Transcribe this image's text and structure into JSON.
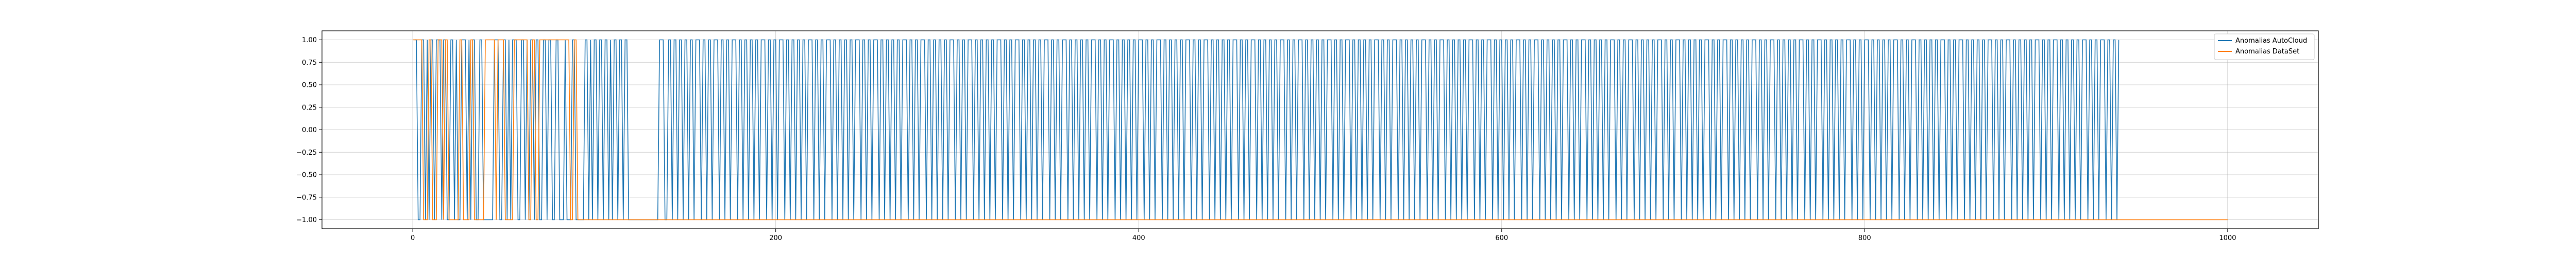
{
  "chart_data": {
    "type": "line",
    "title": "",
    "xlabel": "",
    "ylabel": "",
    "xlim": [
      -50,
      1050
    ],
    "ylim": [
      -1.1,
      1.1
    ],
    "grid": true,
    "legend_position": "top-right",
    "x_ticks": [
      0,
      200,
      400,
      600,
      800,
      1000
    ],
    "x_tick_labels": [
      "0",
      "200",
      "400",
      "600",
      "800",
      "1000"
    ],
    "y_ticks": [
      1.0,
      0.75,
      0.5,
      0.25,
      0.0,
      -0.25,
      -0.5,
      -0.75,
      -1.0
    ],
    "y_tick_labels": [
      "1.00",
      "0.75",
      "0.50",
      "0.25",
      "0.00",
      "−0.25",
      "−0.50",
      "−0.75",
      "−1.00"
    ],
    "series": [
      {
        "name": "Anomalias AutoCloud",
        "color": "#1f77b4",
        "x_range": [
          1,
          940
        ],
        "values_on_value": 1,
        "values_off_value": -1,
        "one_runs": [
          [
            1,
            2
          ],
          [
            5,
            6
          ],
          [
            8,
            8
          ],
          [
            10,
            11
          ],
          [
            13,
            15
          ],
          [
            17,
            18
          ],
          [
            21,
            22
          ],
          [
            24,
            24
          ],
          [
            27,
            29
          ],
          [
            31,
            31
          ],
          [
            33,
            34
          ],
          [
            37,
            38
          ],
          [
            45,
            47
          ],
          [
            50,
            51
          ],
          [
            53,
            53
          ],
          [
            55,
            57
          ],
          [
            60,
            61
          ],
          [
            63,
            63
          ],
          [
            65,
            66
          ],
          [
            68,
            69
          ],
          [
            72,
            73
          ],
          [
            75,
            76
          ],
          [
            79,
            80
          ],
          [
            84,
            84
          ],
          [
            88,
            89
          ],
          [
            95,
            96
          ],
          [
            98,
            98
          ],
          [
            100,
            101
          ],
          [
            103,
            104
          ],
          [
            106,
            107
          ],
          [
            109,
            109
          ],
          [
            111,
            112
          ],
          [
            114,
            115
          ],
          [
            117,
            118
          ],
          [
            136,
            138
          ],
          [
            141,
            142
          ],
          [
            144,
            145
          ],
          [
            147,
            148
          ],
          [
            150,
            151
          ],
          [
            153,
            154
          ],
          [
            156,
            158
          ],
          [
            160,
            161
          ],
          [
            163,
            164
          ],
          [
            166,
            168
          ],
          [
            170,
            171
          ],
          [
            173,
            174
          ],
          [
            176,
            178
          ],
          [
            180,
            181
          ],
          [
            183,
            184
          ],
          [
            186,
            187
          ],
          [
            189,
            190
          ],
          [
            192,
            194
          ],
          [
            196,
            197
          ],
          [
            199,
            200
          ],
          [
            202,
            204
          ],
          [
            206,
            207
          ],
          [
            209,
            210
          ],
          [
            212,
            213
          ],
          [
            215,
            216
          ],
          [
            218,
            220
          ],
          [
            222,
            223
          ],
          [
            225,
            226
          ],
          [
            228,
            230
          ],
          [
            232,
            233
          ],
          [
            235,
            236
          ],
          [
            238,
            239
          ],
          [
            241,
            242
          ],
          [
            244,
            246
          ],
          [
            248,
            249
          ],
          [
            251,
            252
          ],
          [
            254,
            256
          ],
          [
            258,
            259
          ],
          [
            261,
            262
          ],
          [
            264,
            265
          ],
          [
            267,
            268
          ],
          [
            270,
            272
          ],
          [
            274,
            275
          ],
          [
            277,
            278
          ],
          [
            280,
            282
          ],
          [
            284,
            285
          ],
          [
            287,
            288
          ],
          [
            290,
            291
          ],
          [
            293,
            294
          ],
          [
            296,
            298
          ],
          [
            300,
            301
          ],
          [
            303,
            304
          ],
          [
            306,
            308
          ],
          [
            310,
            311
          ],
          [
            313,
            314
          ],
          [
            316,
            317
          ],
          [
            319,
            320
          ],
          [
            322,
            324
          ],
          [
            326,
            327
          ],
          [
            329,
            330
          ],
          [
            332,
            334
          ],
          [
            336,
            337
          ],
          [
            339,
            340
          ],
          [
            342,
            343
          ],
          [
            345,
            346
          ],
          [
            348,
            350
          ],
          [
            352,
            353
          ],
          [
            355,
            356
          ],
          [
            358,
            360
          ],
          [
            362,
            363
          ],
          [
            365,
            366
          ],
          [
            368,
            369
          ],
          [
            371,
            372
          ],
          [
            374,
            376
          ],
          [
            378,
            379
          ],
          [
            381,
            382
          ],
          [
            384,
            386
          ],
          [
            388,
            389
          ],
          [
            391,
            392
          ],
          [
            394,
            395
          ],
          [
            397,
            398
          ],
          [
            400,
            402
          ],
          [
            404,
            405
          ],
          [
            407,
            408
          ],
          [
            410,
            412
          ],
          [
            414,
            415
          ],
          [
            417,
            418
          ],
          [
            420,
            421
          ],
          [
            423,
            424
          ],
          [
            426,
            428
          ],
          [
            430,
            431
          ],
          [
            433,
            434
          ],
          [
            436,
            438
          ],
          [
            440,
            441
          ],
          [
            443,
            444
          ],
          [
            446,
            447
          ],
          [
            449,
            450
          ],
          [
            452,
            454
          ],
          [
            456,
            457
          ],
          [
            459,
            460
          ],
          [
            462,
            464
          ],
          [
            466,
            467
          ],
          [
            469,
            470
          ],
          [
            472,
            473
          ],
          [
            475,
            476
          ],
          [
            478,
            480
          ],
          [
            482,
            483
          ],
          [
            485,
            486
          ],
          [
            488,
            490
          ],
          [
            492,
            493
          ],
          [
            495,
            496
          ],
          [
            498,
            499
          ],
          [
            501,
            502
          ],
          [
            504,
            506
          ],
          [
            508,
            509
          ],
          [
            511,
            512
          ],
          [
            514,
            516
          ],
          [
            518,
            519
          ],
          [
            521,
            522
          ],
          [
            524,
            525
          ],
          [
            527,
            528
          ],
          [
            530,
            532
          ],
          [
            534,
            535
          ],
          [
            537,
            538
          ],
          [
            540,
            542
          ],
          [
            544,
            545
          ],
          [
            547,
            548
          ],
          [
            550,
            551
          ],
          [
            553,
            554
          ],
          [
            556,
            558
          ],
          [
            560,
            561
          ],
          [
            563,
            564
          ],
          [
            566,
            568
          ],
          [
            570,
            571
          ],
          [
            573,
            574
          ],
          [
            576,
            577
          ],
          [
            579,
            580
          ],
          [
            582,
            584
          ],
          [
            586,
            587
          ],
          [
            589,
            590
          ],
          [
            592,
            594
          ],
          [
            596,
            597
          ],
          [
            599,
            600
          ],
          [
            602,
            603
          ],
          [
            605,
            606
          ],
          [
            608,
            610
          ],
          [
            612,
            613
          ],
          [
            615,
            616
          ],
          [
            618,
            620
          ],
          [
            622,
            623
          ],
          [
            625,
            626
          ],
          [
            628,
            629
          ],
          [
            631,
            632
          ],
          [
            634,
            636
          ],
          [
            638,
            639
          ],
          [
            641,
            642
          ],
          [
            644,
            646
          ],
          [
            648,
            649
          ],
          [
            651,
            652
          ],
          [
            654,
            655
          ],
          [
            657,
            658
          ],
          [
            660,
            662
          ],
          [
            664,
            665
          ],
          [
            667,
            668
          ],
          [
            670,
            672
          ],
          [
            674,
            675
          ],
          [
            677,
            678
          ],
          [
            680,
            681
          ],
          [
            683,
            684
          ],
          [
            686,
            688
          ],
          [
            690,
            691
          ],
          [
            693,
            694
          ],
          [
            696,
            698
          ],
          [
            700,
            701
          ],
          [
            703,
            704
          ],
          [
            706,
            707
          ],
          [
            709,
            710
          ],
          [
            712,
            714
          ],
          [
            716,
            717
          ],
          [
            719,
            720
          ],
          [
            722,
            724
          ],
          [
            726,
            727
          ],
          [
            729,
            730
          ],
          [
            732,
            733
          ],
          [
            735,
            736
          ],
          [
            738,
            740
          ],
          [
            742,
            743
          ],
          [
            745,
            746
          ],
          [
            748,
            750
          ],
          [
            752,
            753
          ],
          [
            755,
            756
          ],
          [
            758,
            759
          ],
          [
            761,
            762
          ],
          [
            764,
            766
          ],
          [
            768,
            769
          ],
          [
            771,
            772
          ],
          [
            774,
            776
          ],
          [
            778,
            779
          ],
          [
            781,
            782
          ],
          [
            784,
            785
          ],
          [
            787,
            788
          ],
          [
            790,
            792
          ],
          [
            794,
            795
          ],
          [
            797,
            798
          ],
          [
            800,
            802
          ],
          [
            804,
            805
          ],
          [
            807,
            808
          ],
          [
            810,
            811
          ],
          [
            813,
            814
          ],
          [
            816,
            818
          ],
          [
            820,
            821
          ],
          [
            823,
            824
          ],
          [
            826,
            828
          ],
          [
            830,
            831
          ],
          [
            833,
            834
          ],
          [
            836,
            837
          ],
          [
            839,
            840
          ],
          [
            842,
            844
          ],
          [
            846,
            847
          ],
          [
            849,
            850
          ],
          [
            852,
            854
          ],
          [
            856,
            857
          ],
          [
            859,
            860
          ],
          [
            862,
            863
          ],
          [
            865,
            866
          ],
          [
            868,
            870
          ],
          [
            872,
            873
          ],
          [
            875,
            876
          ],
          [
            878,
            880
          ],
          [
            882,
            883
          ],
          [
            885,
            886
          ],
          [
            888,
            889
          ],
          [
            891,
            892
          ],
          [
            894,
            896
          ],
          [
            898,
            899
          ],
          [
            901,
            902
          ],
          [
            904,
            906
          ],
          [
            908,
            909
          ],
          [
            911,
            912
          ],
          [
            914,
            915
          ],
          [
            917,
            918
          ],
          [
            920,
            922
          ],
          [
            924,
            925
          ],
          [
            927,
            928
          ],
          [
            930,
            932
          ],
          [
            934,
            935
          ],
          [
            937,
            938
          ],
          [
            940,
            940
          ]
        ]
      },
      {
        "name": "Anomalias DataSet",
        "color": "#ff7f0e",
        "x_range": [
          0,
          1000
        ],
        "values_on_value": 1,
        "values_off_value": -1,
        "one_runs": [
          [
            0,
            5
          ],
          [
            9,
            10
          ],
          [
            14,
            16
          ],
          [
            18,
            19
          ],
          [
            26,
            27
          ],
          [
            32,
            33
          ],
          [
            40,
            45
          ],
          [
            47,
            50
          ],
          [
            56,
            63
          ],
          [
            66,
            67
          ],
          [
            70,
            86
          ],
          [
            89,
            90
          ]
        ]
      }
    ]
  },
  "legend": {
    "items": [
      {
        "label": "Anomalias AutoCloud",
        "color": "#1f77b4"
      },
      {
        "label": "Anomalias DataSet",
        "color": "#ff7f0e"
      }
    ]
  }
}
